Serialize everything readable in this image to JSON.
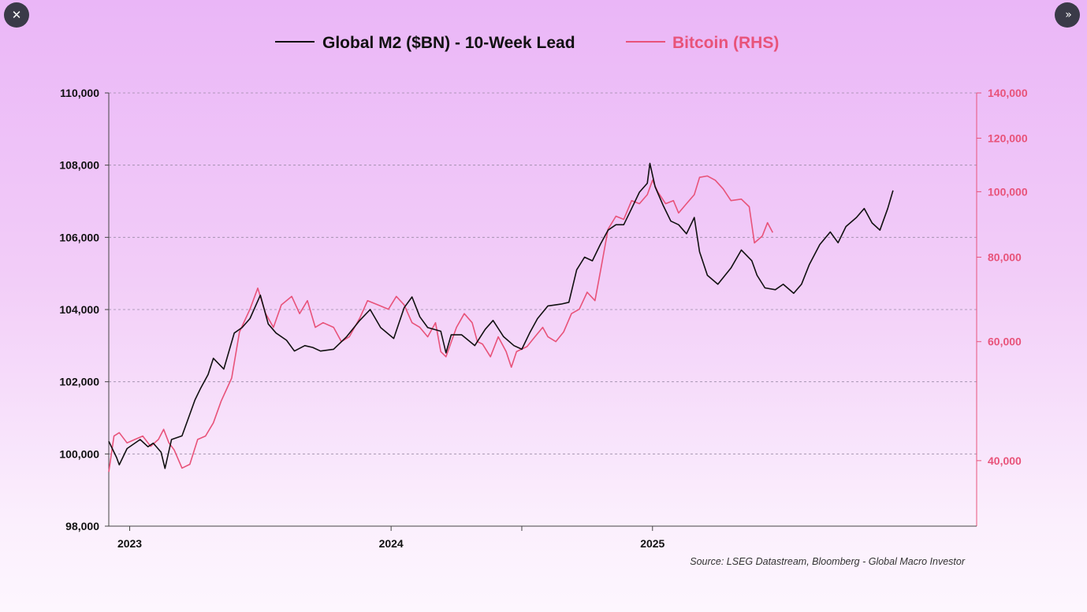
{
  "viewer": {
    "close_icon": "close-icon",
    "next_icon": "double-chevron-right-icon",
    "close_glyph": "✕",
    "next_glyph": "»"
  },
  "chart_data": {
    "type": "line",
    "title": "",
    "legend": [
      {
        "label": "Global M2 ($BN) - 10-Week Lead",
        "color": "#111111"
      },
      {
        "label": "Bitcoin (RHS)",
        "color": "#e8537a"
      }
    ],
    "legend_position": "top-center",
    "x_ticks": [
      "2023",
      "2024",
      "2025"
    ],
    "x_tick_times": [
      2023.0,
      2024.0,
      2025.0
    ],
    "x_range": [
      2022.92,
      2026.24
    ],
    "left_axis": {
      "label": "",
      "range": [
        98000,
        110000
      ],
      "ticks": [
        98000,
        100000,
        102000,
        104000,
        106000,
        108000,
        110000
      ],
      "tick_labels": [
        "98,000",
        "100,000",
        "102,000",
        "104,000",
        "106,000",
        "108,000",
        "110,000"
      ],
      "color": "#111111"
    },
    "right_axis": {
      "label": "",
      "scale": "log",
      "range": [
        32000,
        140000
      ],
      "ticks": [
        40000,
        60000,
        80000,
        100000,
        120000,
        140000
      ],
      "tick_labels": [
        "40,000",
        "60,000",
        "80,000",
        "100,000",
        "120,000",
        "140,000"
      ],
      "color": "#e8537a"
    },
    "grid": true,
    "source": "Source: LSEG Datastream, Bloomberg - Global Macro Investor",
    "series": [
      {
        "name": "Global M2 ($BN) - 10-Week Lead",
        "axis": "left",
        "color": "#111111",
        "points": [
          [
            2022.92,
            100350
          ],
          [
            2022.95,
            99900
          ],
          [
            2022.96,
            99700
          ],
          [
            2022.99,
            100150
          ],
          [
            2023.04,
            100400
          ],
          [
            2023.07,
            100200
          ],
          [
            2023.09,
            100300
          ],
          [
            2023.12,
            100050
          ],
          [
            2023.135,
            99600
          ],
          [
            2023.16,
            100400
          ],
          [
            2023.2,
            100500
          ],
          [
            2023.22,
            100900
          ],
          [
            2023.25,
            101500
          ],
          [
            2023.27,
            101800
          ],
          [
            2023.3,
            102200
          ],
          [
            2023.32,
            102650
          ],
          [
            2023.36,
            102350
          ],
          [
            2023.4,
            103350
          ],
          [
            2023.43,
            103500
          ],
          [
            2023.46,
            103750
          ],
          [
            2023.5,
            104400
          ],
          [
            2023.53,
            103600
          ],
          [
            2023.56,
            103350
          ],
          [
            2023.6,
            103150
          ],
          [
            2023.63,
            102850
          ],
          [
            2023.67,
            103000
          ],
          [
            2023.7,
            102950
          ],
          [
            2023.73,
            102850
          ],
          [
            2023.78,
            102900
          ],
          [
            2023.83,
            103250
          ],
          [
            2023.88,
            103700
          ],
          [
            2023.92,
            104000
          ],
          [
            2023.96,
            103500
          ],
          [
            2024.01,
            103200
          ],
          [
            2024.05,
            104050
          ],
          [
            2024.08,
            104350
          ],
          [
            2024.11,
            103800
          ],
          [
            2024.14,
            103500
          ],
          [
            2024.19,
            103400
          ],
          [
            2024.21,
            102800
          ],
          [
            2024.23,
            103300
          ],
          [
            2024.27,
            103300
          ],
          [
            2024.32,
            103000
          ],
          [
            2024.36,
            103450
          ],
          [
            2024.39,
            103700
          ],
          [
            2024.43,
            103250
          ],
          [
            2024.47,
            103000
          ],
          [
            2024.5,
            102900
          ],
          [
            2024.53,
            103350
          ],
          [
            2024.56,
            103750
          ],
          [
            2024.6,
            104100
          ],
          [
            2024.65,
            104150
          ],
          [
            2024.68,
            104200
          ],
          [
            2024.71,
            105100
          ],
          [
            2024.74,
            105450
          ],
          [
            2024.77,
            105350
          ],
          [
            2024.8,
            105800
          ],
          [
            2024.83,
            106200
          ],
          [
            2024.86,
            106350
          ],
          [
            2024.89,
            106350
          ],
          [
            2024.92,
            106800
          ],
          [
            2024.95,
            107250
          ],
          [
            2024.98,
            107500
          ],
          [
            2024.99,
            108050
          ],
          [
            2025.01,
            107400
          ],
          [
            2025.04,
            106900
          ],
          [
            2025.07,
            106450
          ],
          [
            2025.1,
            106350
          ],
          [
            2025.13,
            106100
          ],
          [
            2025.16,
            106550
          ],
          [
            2025.18,
            105600
          ],
          [
            2025.21,
            104950
          ],
          [
            2025.25,
            104700
          ],
          [
            2025.3,
            105150
          ],
          [
            2025.34,
            105650
          ],
          [
            2025.38,
            105350
          ],
          [
            2025.4,
            104950
          ],
          [
            2025.43,
            104600
          ],
          [
            2025.47,
            104550
          ],
          [
            2025.5,
            104700
          ],
          [
            2025.54,
            104450
          ],
          [
            2025.57,
            104700
          ],
          [
            2025.6,
            105250
          ],
          [
            2025.64,
            105800
          ],
          [
            2025.68,
            106150
          ],
          [
            2025.71,
            105850
          ],
          [
            2025.74,
            106300
          ],
          [
            2025.78,
            106550
          ],
          [
            2025.81,
            106800
          ],
          [
            2025.84,
            106400
          ],
          [
            2025.87,
            106200
          ],
          [
            2025.9,
            106800
          ],
          [
            2025.92,
            107300
          ]
        ]
      },
      {
        "name": "Bitcoin (RHS)",
        "axis": "right",
        "color": "#e8537a",
        "points": [
          [
            2022.92,
            38500
          ],
          [
            2022.94,
            43500
          ],
          [
            2022.96,
            44000
          ],
          [
            2022.99,
            42500
          ],
          [
            2023.02,
            43000
          ],
          [
            2023.05,
            43500
          ],
          [
            2023.08,
            42000
          ],
          [
            2023.11,
            43000
          ],
          [
            2023.13,
            44500
          ],
          [
            2023.15,
            42500
          ],
          [
            2023.17,
            41500
          ],
          [
            2023.2,
            39000
          ],
          [
            2023.23,
            39500
          ],
          [
            2023.26,
            43000
          ],
          [
            2023.29,
            43500
          ],
          [
            2023.32,
            45500
          ],
          [
            2023.35,
            49000
          ],
          [
            2023.39,
            53000
          ],
          [
            2023.42,
            62000
          ],
          [
            2023.46,
            67000
          ],
          [
            2023.49,
            72000
          ],
          [
            2023.52,
            66000
          ],
          [
            2023.55,
            63000
          ],
          [
            2023.58,
            68000
          ],
          [
            2023.62,
            70000
          ],
          [
            2023.65,
            66000
          ],
          [
            2023.68,
            69000
          ],
          [
            2023.71,
            63000
          ],
          [
            2023.74,
            64000
          ],
          [
            2023.78,
            63000
          ],
          [
            2023.81,
            60000
          ],
          [
            2023.84,
            61000
          ],
          [
            2023.88,
            65000
          ],
          [
            2023.91,
            69000
          ],
          [
            2023.95,
            68000
          ],
          [
            2023.99,
            67000
          ],
          [
            2024.02,
            70000
          ],
          [
            2024.05,
            68000
          ],
          [
            2024.08,
            64000
          ],
          [
            2024.11,
            63000
          ],
          [
            2024.14,
            61000
          ],
          [
            2024.17,
            64000
          ],
          [
            2024.19,
            58000
          ],
          [
            2024.21,
            57000
          ],
          [
            2024.25,
            63000
          ],
          [
            2024.28,
            66000
          ],
          [
            2024.31,
            64000
          ],
          [
            2024.33,
            60000
          ],
          [
            2024.35,
            59500
          ],
          [
            2024.38,
            57000
          ],
          [
            2024.41,
            61000
          ],
          [
            2024.44,
            58000
          ],
          [
            2024.46,
            55000
          ],
          [
            2024.48,
            58000
          ],
          [
            2024.52,
            59000
          ],
          [
            2024.55,
            61000
          ],
          [
            2024.58,
            63000
          ],
          [
            2024.6,
            61000
          ],
          [
            2024.63,
            60000
          ],
          [
            2024.66,
            62000
          ],
          [
            2024.69,
            66000
          ],
          [
            2024.72,
            67000
          ],
          [
            2024.75,
            71000
          ],
          [
            2024.78,
            69000
          ],
          [
            2024.8,
            76000
          ],
          [
            2024.83,
            88000
          ],
          [
            2024.86,
            92000
          ],
          [
            2024.89,
            91000
          ],
          [
            2024.92,
            97000
          ],
          [
            2024.95,
            96000
          ],
          [
            2024.98,
            99000
          ],
          [
            2025.0,
            104000
          ],
          [
            2025.02,
            100000
          ],
          [
            2025.05,
            96000
          ],
          [
            2025.08,
            97000
          ],
          [
            2025.1,
            93000
          ],
          [
            2025.13,
            96000
          ],
          [
            2025.16,
            99000
          ],
          [
            2025.18,
            105000
          ],
          [
            2025.21,
            105500
          ],
          [
            2025.24,
            104000
          ],
          [
            2025.27,
            101000
          ],
          [
            2025.3,
            97000
          ],
          [
            2025.34,
            97500
          ],
          [
            2025.37,
            95000
          ],
          [
            2025.39,
            84000
          ],
          [
            2025.42,
            86000
          ],
          [
            2025.44,
            90000
          ],
          [
            2025.46,
            87000
          ]
        ]
      }
    ]
  }
}
